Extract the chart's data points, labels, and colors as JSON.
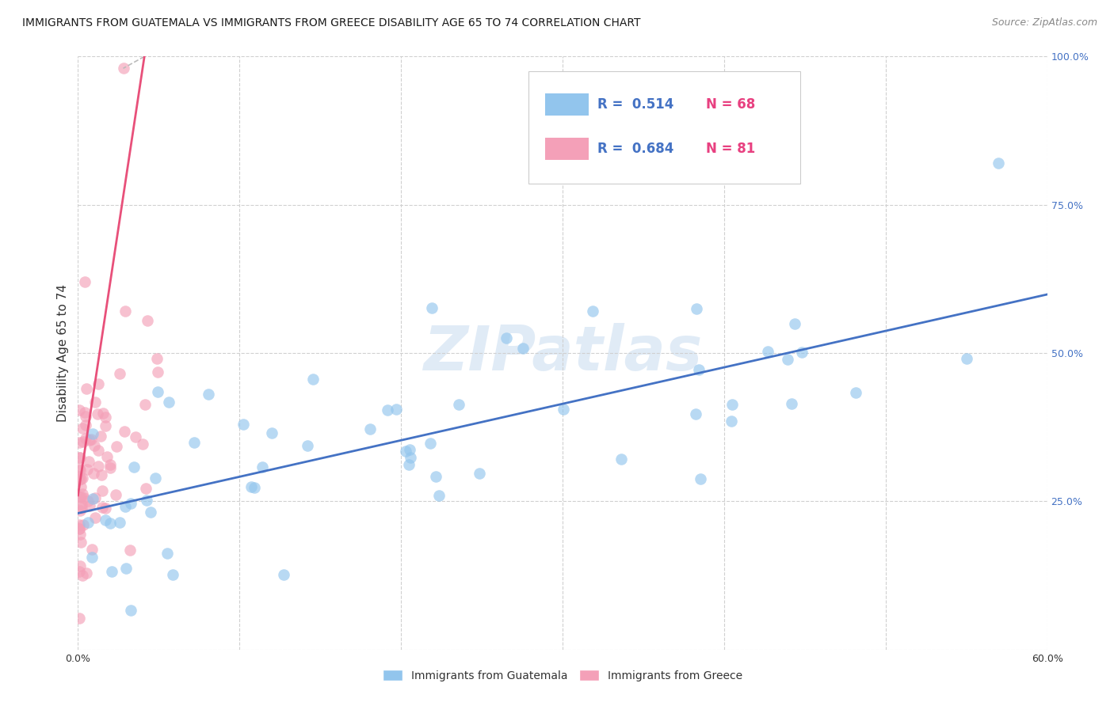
{
  "title": "IMMIGRANTS FROM GUATEMALA VS IMMIGRANTS FROM GREECE DISABILITY AGE 65 TO 74 CORRELATION CHART",
  "source": "Source: ZipAtlas.com",
  "ylabel": "Disability Age 65 to 74",
  "xlim": [
    0,
    0.6
  ],
  "ylim": [
    0,
    1.0
  ],
  "color_guatemala": "#92C5ED",
  "color_greece": "#F4A0B8",
  "color_trendline_guatemala": "#4472C4",
  "color_trendline_greece": "#E8507A",
  "background_color": "#ffffff",
  "grid_color": "#cccccc",
  "title_fontsize": 10.5,
  "legend_r_guat": "R =  0.514",
  "legend_n_guat": "N = 68",
  "legend_r_greece": "R =  0.684",
  "legend_n_greece": "N = 81",
  "watermark_text": "ZIPatlas",
  "ytick_labels": [
    "25.0%",
    "50.0%",
    "75.0%",
    "100.0%"
  ],
  "ytick_vals": [
    0.25,
    0.5,
    0.75,
    1.0
  ],
  "xtick_labels": [
    "0.0%",
    "",
    "",
    "",
    "",
    "",
    "60.0%"
  ],
  "xtick_vals": [
    0.0,
    0.1,
    0.2,
    0.3,
    0.4,
    0.5,
    0.6
  ],
  "bottom_legend_labels": [
    "Immigrants from Guatemala",
    "Immigrants from Greece"
  ]
}
